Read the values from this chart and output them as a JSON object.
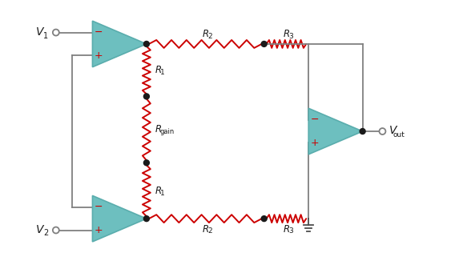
{
  "bg_color": "#ffffff",
  "opamp_color": "#6dbfbf",
  "opamp_outline": "#5aadad",
  "wire_color": "#808080",
  "resistor_color": "#cc0000",
  "dot_color": "#1a1a1a",
  "label_color": "#1a1a1a",
  "plus_minus_color": "#cc0000",
  "ground_color": "#4d4d4d"
}
